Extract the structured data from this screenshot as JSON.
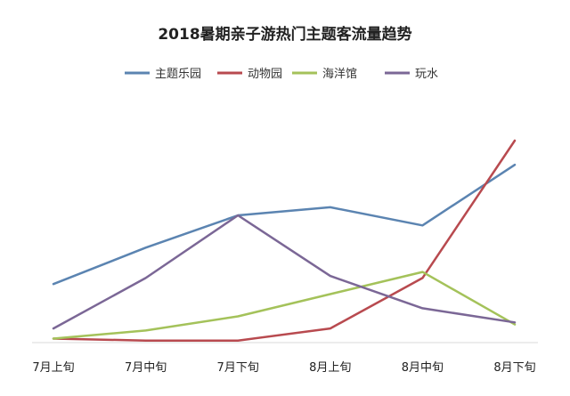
{
  "chart_data": {
    "type": "line",
    "title": "2018暑期亲子游热门主题客流量趋势",
    "xlabel": "",
    "ylabel": "",
    "categories": [
      "7月上旬",
      "7月中旬",
      "7月下旬",
      "8月上旬",
      "8月中旬",
      "8月下旬"
    ],
    "ylim": [
      0,
      100
    ],
    "grid": false,
    "legend": "top",
    "series": [
      {
        "name": "主题乐园",
        "color": "#5b84b1",
        "values": [
          29,
          47,
          63,
          67,
          58,
          88
        ]
      },
      {
        "name": "动物园",
        "color": "#b84a4f",
        "values": [
          2,
          1,
          1,
          7,
          32,
          100
        ]
      },
      {
        "name": "海洋馆",
        "color": "#a4c25a",
        "values": [
          2,
          6,
          13,
          24,
          35,
          9
        ]
      },
      {
        "name": "玩水",
        "color": "#7b6796",
        "values": [
          7,
          32,
          63,
          33,
          17,
          10
        ]
      }
    ]
  }
}
